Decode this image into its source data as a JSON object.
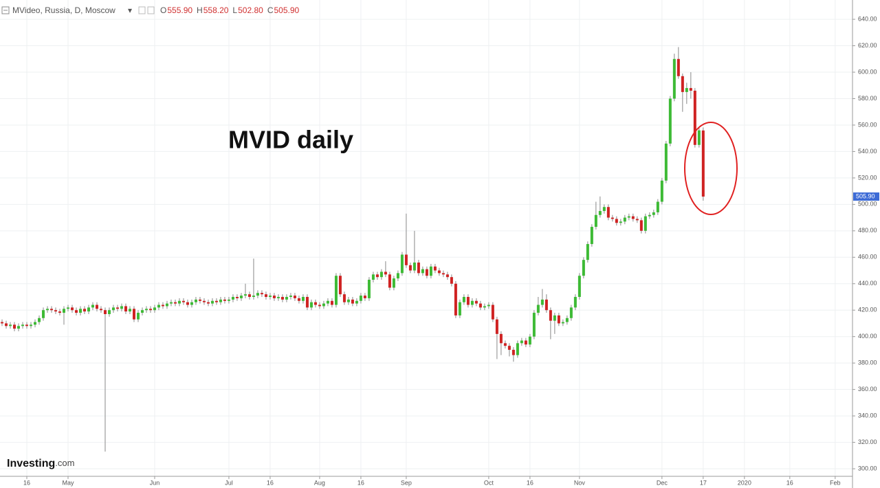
{
  "chart_data": {
    "type": "candlestick",
    "title": "MVideo, Russia, D, Moscow",
    "ohlc_header": [
      {
        "label": "O",
        "text": "555.90"
      },
      {
        "label": "H",
        "text": "558.20"
      },
      {
        "label": "L",
        "text": "502.80"
      },
      {
        "label": "C",
        "text": "505.90"
      }
    ],
    "annotation": "MVID daily",
    "watermark": "Investing",
    "watermark_suffix": ".com",
    "last_price": {
      "value": 505.9,
      "label": "505.90"
    },
    "up_color": "#3dba35",
    "down_color": "#cf2222",
    "wick_color": "#888888",
    "grid": true,
    "xlim": [
      -0.5,
      206.2
    ],
    "xticks": [
      {
        "value": 6,
        "label": "16"
      },
      {
        "value": 16,
        "label": "May"
      },
      {
        "value": 37,
        "label": "Jun"
      },
      {
        "value": 55,
        "label": "Jul"
      },
      {
        "value": 65,
        "label": "16"
      },
      {
        "value": 77,
        "label": "Aug"
      },
      {
        "value": 87,
        "label": "16"
      },
      {
        "value": 98,
        "label": "Sep"
      },
      {
        "value": 118,
        "label": "Oct"
      },
      {
        "value": 128,
        "label": "16"
      },
      {
        "value": 140,
        "label": "Nov"
      },
      {
        "value": 160,
        "label": "Dec"
      },
      {
        "value": 170,
        "label": "17"
      },
      {
        "value": 180,
        "label": "2020"
      },
      {
        "value": 191,
        "label": "16"
      },
      {
        "value": 202,
        "label": "Feb"
      }
    ],
    "ylim": [
      294.3,
      654.6
    ],
    "yticks": [
      {
        "value": 300,
        "label": "300.00"
      },
      {
        "value": 320,
        "label": "320.00"
      },
      {
        "value": 340,
        "label": "340.00"
      },
      {
        "value": 360,
        "label": "360.00"
      },
      {
        "value": 380,
        "label": "380.00"
      },
      {
        "value": 400,
        "label": "400.00"
      },
      {
        "value": 420,
        "label": "420.00"
      },
      {
        "value": 440,
        "label": "440.00"
      },
      {
        "value": 460,
        "label": "460.00"
      },
      {
        "value": 480,
        "label": "480.00"
      },
      {
        "value": 500,
        "label": "500.00"
      },
      {
        "value": 520,
        "label": "520.00"
      },
      {
        "value": 540,
        "label": "540.00"
      },
      {
        "value": 560,
        "label": "560.00"
      },
      {
        "value": 580,
        "label": "580.00"
      },
      {
        "value": 600,
        "label": "600.00"
      },
      {
        "value": 620,
        "label": "620.00"
      },
      {
        "value": 640,
        "label": "640.00"
      }
    ],
    "open": [
      411,
      410,
      408,
      409,
      406,
      408,
      409,
      408,
      409,
      411,
      414,
      420,
      421,
      420,
      419,
      418,
      421,
      422,
      420,
      418,
      421,
      419,
      422,
      424,
      421,
      420,
      417,
      420,
      422,
      421,
      423,
      419,
      421,
      413,
      418,
      420,
      421,
      420,
      422,
      424,
      423,
      425,
      426,
      425,
      427,
      426,
      424,
      426,
      428,
      427,
      426,
      425,
      427,
      426,
      428,
      427,
      428,
      430,
      429,
      431,
      432,
      430,
      431,
      433,
      432,
      430,
      431,
      429,
      430,
      428,
      430,
      431,
      429,
      427,
      430,
      422,
      426,
      424,
      423,
      425,
      427,
      424,
      446,
      432,
      426,
      428,
      425,
      427,
      431,
      429,
      443,
      447,
      445,
      449,
      447,
      437,
      444,
      448,
      462,
      454,
      450,
      456,
      448,
      451,
      446,
      453,
      450,
      448,
      447,
      445,
      440,
      416,
      426,
      430,
      424,
      427,
      425,
      422,
      423,
      424,
      413,
      402,
      395,
      393,
      390,
      386,
      395,
      397,
      394,
      400,
      418,
      424,
      428,
      420,
      412,
      416,
      410,
      411,
      414,
      422,
      430,
      446,
      458,
      470,
      483,
      492,
      495,
      498,
      490,
      489,
      486,
      487,
      490,
      491,
      489,
      488,
      480,
      491,
      492,
      494,
      502,
      518,
      546,
      580,
      610,
      597,
      585,
      588,
      586,
      545,
      555.9
    ],
    "high": [
      413,
      412,
      411,
      411,
      410,
      411,
      411,
      411,
      413,
      416,
      422,
      423,
      423,
      422,
      421,
      423,
      424,
      424,
      422,
      423,
      423,
      424,
      426,
      426,
      423,
      422,
      422,
      424,
      424,
      425,
      425,
      423,
      423,
      420,
      422,
      423,
      423,
      424,
      426,
      426,
      427,
      428,
      428,
      429,
      429,
      428,
      428,
      430,
      430,
      429,
      428,
      429,
      429,
      430,
      430,
      430,
      432,
      432,
      433,
      440,
      434,
      459,
      435,
      435,
      434,
      433,
      433,
      432,
      432,
      432,
      433,
      433,
      431,
      432,
      432,
      428,
      428,
      426,
      427,
      429,
      429,
      448,
      448,
      434,
      430,
      430,
      429,
      433,
      433,
      445,
      449,
      449,
      451,
      457,
      449,
      446,
      450,
      464,
      493,
      456,
      480,
      458,
      453,
      453,
      455,
      455,
      452,
      450,
      449,
      447,
      442,
      428,
      432,
      432,
      429,
      429,
      427,
      425,
      426,
      426,
      415,
      404,
      397,
      395,
      392,
      397,
      399,
      399,
      402,
      420,
      430,
      436,
      432,
      422,
      418,
      418,
      413,
      416,
      424,
      432,
      448,
      460,
      472,
      485,
      502,
      506,
      500,
      500,
      492,
      491,
      489,
      492,
      493,
      493,
      491,
      490,
      493,
      494,
      496,
      504,
      520,
      548,
      582,
      614,
      619,
      599,
      592,
      600,
      588,
      558,
      558.2
    ],
    "low": [
      408,
      406,
      406,
      404,
      404,
      406,
      406,
      406,
      407,
      409,
      412,
      418,
      418,
      417,
      416,
      409,
      419,
      418,
      416,
      416,
      417,
      417,
      420,
      419,
      418,
      313,
      415,
      418,
      419,
      419,
      417,
      417,
      411,
      411,
      416,
      418,
      418,
      418,
      420,
      421,
      421,
      423,
      423,
      423,
      424,
      422,
      422,
      424,
      425,
      424,
      423,
      423,
      424,
      424,
      425,
      425,
      426,
      427,
      427,
      429,
      428,
      428,
      429,
      430,
      428,
      428,
      427,
      427,
      426,
      426,
      428,
      427,
      425,
      425,
      420,
      420,
      422,
      421,
      421,
      423,
      422,
      422,
      430,
      424,
      424,
      423,
      423,
      425,
      427,
      427,
      441,
      443,
      443,
      445,
      435,
      435,
      442,
      446,
      452,
      448,
      448,
      446,
      446,
      444,
      444,
      448,
      446,
      445,
      443,
      438,
      414,
      414,
      424,
      422,
      422,
      423,
      420,
      420,
      421,
      411,
      383,
      386,
      391,
      385,
      381,
      384,
      393,
      392,
      392,
      398,
      416,
      422,
      418,
      398,
      402,
      408,
      408,
      409,
      412,
      420,
      428,
      444,
      456,
      468,
      481,
      490,
      493,
      488,
      487,
      484,
      484,
      485,
      488,
      487,
      486,
      478,
      478,
      489,
      490,
      492,
      500,
      516,
      544,
      578,
      595,
      570,
      576,
      580,
      543,
      543,
      502.8
    ],
    "close": [
      410,
      408,
      409,
      406,
      408,
      409,
      408,
      409,
      411,
      414,
      420,
      421,
      420,
      419,
      418,
      421,
      422,
      420,
      418,
      421,
      419,
      422,
      424,
      421,
      420,
      417,
      420,
      422,
      421,
      423,
      419,
      421,
      413,
      418,
      420,
      421,
      420,
      422,
      424,
      423,
      425,
      426,
      425,
      427,
      426,
      424,
      426,
      428,
      427,
      426,
      425,
      427,
      426,
      428,
      427,
      428,
      430,
      429,
      431,
      432,
      430,
      431,
      433,
      432,
      430,
      431,
      429,
      430,
      428,
      430,
      431,
      429,
      427,
      430,
      422,
      426,
      424,
      423,
      425,
      427,
      424,
      446,
      432,
      426,
      428,
      425,
      427,
      431,
      429,
      443,
      447,
      445,
      449,
      447,
      437,
      444,
      448,
      462,
      454,
      450,
      456,
      448,
      451,
      446,
      453,
      450,
      448,
      447,
      445,
      440,
      416,
      426,
      430,
      424,
      427,
      425,
      422,
      423,
      424,
      413,
      402,
      395,
      393,
      390,
      386,
      395,
      397,
      394,
      400,
      418,
      424,
      428,
      420,
      412,
      416,
      410,
      411,
      414,
      422,
      430,
      446,
      458,
      470,
      483,
      492,
      495,
      498,
      490,
      489,
      486,
      487,
      490,
      491,
      489,
      488,
      480,
      491,
      492,
      494,
      502,
      518,
      546,
      580,
      610,
      597,
      585,
      588,
      586,
      545,
      556,
      505.9
    ]
  }
}
